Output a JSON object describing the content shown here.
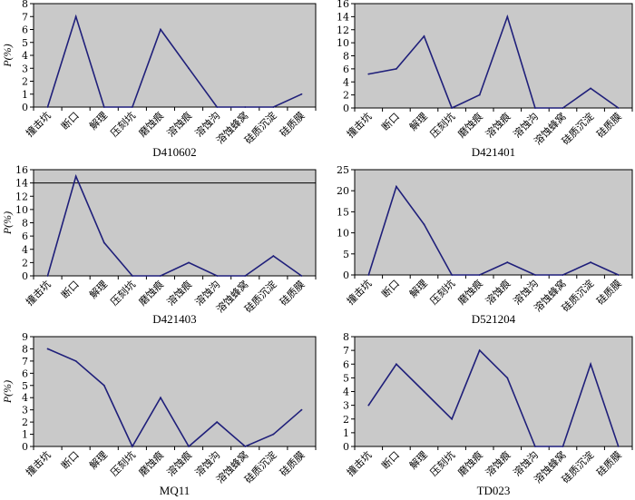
{
  "chart_data": [
    {
      "type": "line",
      "title": "D410602",
      "ylabel": "P(%)",
      "categories": [
        "撞击坑",
        "断口",
        "解理",
        "压刻坑",
        "磨蚀痕",
        "溶蚀痕",
        "溶蚀沟",
        "溶蚀蜂窝",
        "硅质沉淀",
        "硅质膜"
      ],
      "values": [
        0,
        7,
        0,
        0,
        6,
        3,
        0,
        0,
        0,
        1
      ],
      "ylim": [
        0,
        8
      ],
      "yticks": [
        0,
        1,
        2,
        3,
        4,
        5,
        6,
        7,
        8
      ],
      "grid": false,
      "line_color": "#1f1f7a",
      "plot_bg": "#c9c9c9"
    },
    {
      "type": "line",
      "title": "D421401",
      "ylabel": "",
      "categories": [
        "撞击坑",
        "断口",
        "解理",
        "压刻坑",
        "磨蚀痕",
        "溶蚀痕",
        "溶蚀沟",
        "溶蚀蜂窝",
        "硅质沉淀",
        "硅质膜"
      ],
      "values": [
        5.2,
        6,
        11,
        0,
        2,
        14,
        0,
        0,
        3,
        0
      ],
      "ylim": [
        0,
        16
      ],
      "yticks": [
        0,
        2,
        4,
        6,
        8,
        10,
        12,
        14,
        16
      ],
      "grid": false,
      "line_color": "#1f1f7a",
      "plot_bg": "#c9c9c9"
    },
    {
      "type": "line",
      "title": "D421403",
      "ylabel": "P(%)",
      "categories": [
        "撞击坑",
        "断口",
        "解理",
        "压刻坑",
        "磨蚀痕",
        "溶蚀痕",
        "溶蚀沟",
        "溶蚀蜂窝",
        "硅质沉淀",
        "硅质膜"
      ],
      "values": [
        0,
        15,
        5,
        0,
        0,
        2,
        0,
        0,
        3,
        0
      ],
      "ylim": [
        0,
        16
      ],
      "yticks": [
        0,
        2,
        4,
        6,
        8,
        10,
        12,
        14,
        16
      ],
      "grid_lines": [
        14
      ],
      "line_color": "#1f1f7a",
      "plot_bg": "#c9c9c9"
    },
    {
      "type": "line",
      "title": "D521204",
      "ylabel": "",
      "categories": [
        "撞击坑",
        "断口",
        "解理",
        "压刻坑",
        "磨蚀痕",
        "溶蚀痕",
        "溶蚀沟",
        "溶蚀蜂窝",
        "硅质沉淀",
        "硅质膜"
      ],
      "values": [
        0,
        21,
        12,
        0,
        0,
        3,
        0,
        0,
        3,
        0
      ],
      "ylim": [
        0,
        25
      ],
      "yticks": [
        0,
        5,
        10,
        15,
        20,
        25
      ],
      "grid": false,
      "line_color": "#1f1f7a",
      "plot_bg": "#c9c9c9"
    },
    {
      "type": "line",
      "title": "MQ11",
      "ylabel": "P(%)",
      "categories": [
        "撞击坑",
        "断口",
        "解理",
        "压刻坑",
        "磨蚀痕",
        "溶蚀痕",
        "溶蚀沟",
        "溶蚀蜂窝",
        "硅质沉淀",
        "硅质膜"
      ],
      "values": [
        8,
        7,
        5,
        0,
        4,
        0,
        2,
        0,
        1,
        3
      ],
      "ylim": [
        0,
        9
      ],
      "yticks": [
        0,
        1,
        2,
        3,
        4,
        5,
        6,
        7,
        8,
        9
      ],
      "grid": false,
      "line_color": "#1f1f7a",
      "plot_bg": "#c9c9c9"
    },
    {
      "type": "line",
      "title": "TD023",
      "ylabel": "",
      "categories": [
        "撞击坑",
        "断口",
        "解理",
        "压刻坑",
        "磨蚀痕",
        "溶蚀痕",
        "溶蚀沟",
        "溶蚀蜂窝",
        "硅质沉淀",
        "硅质膜"
      ],
      "values": [
        3,
        6,
        4,
        2,
        7,
        5,
        0,
        0,
        6,
        0
      ],
      "ylim": [
        0,
        8
      ],
      "yticks": [
        0,
        1,
        2,
        3,
        4,
        5,
        6,
        7,
        8
      ],
      "grid": false,
      "line_color": "#1f1f7a",
      "plot_bg": "#c9c9c9"
    }
  ]
}
